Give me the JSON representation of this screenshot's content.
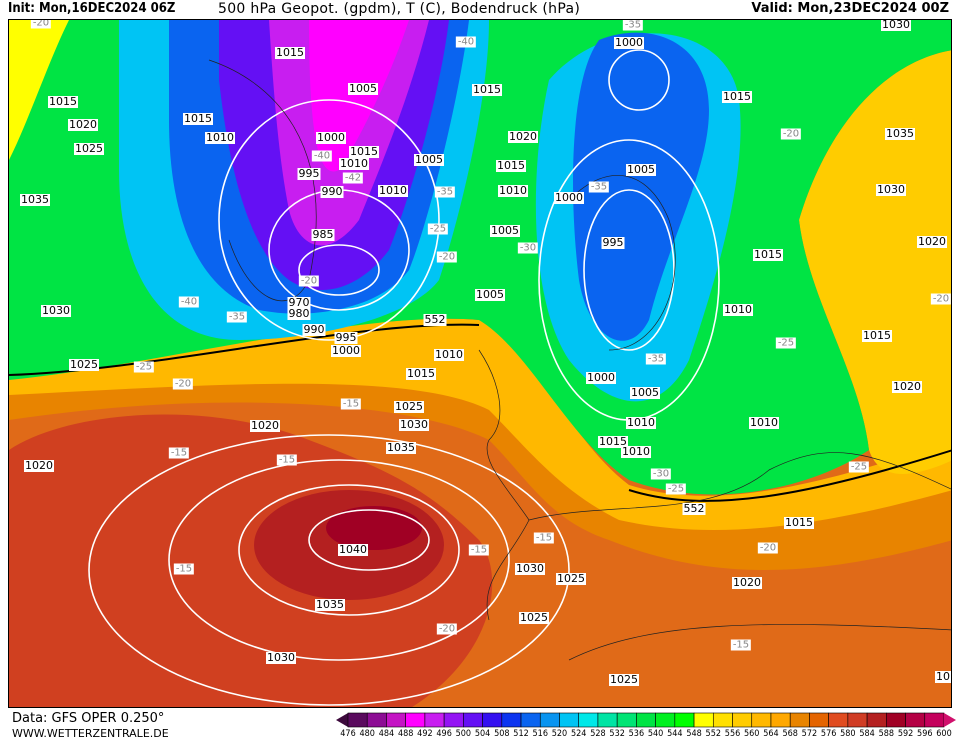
{
  "header": {
    "init": "Init: Mon,16DEC2024 06Z",
    "title": "500 hPa Geopot. (gpdm), T (C), Bodendruck (hPa)",
    "valid": "Valid: Mon,23DEC2024 00Z"
  },
  "footer": {
    "source": "Data: GFS OPER 0.250°",
    "url": "WWW.WETTERZENTRALE.DE"
  },
  "colorbar": {
    "ticks": [
      "476",
      "480",
      "484",
      "488",
      "492",
      "496",
      "500",
      "504",
      "508",
      "512",
      "516",
      "520",
      "524",
      "528",
      "532",
      "536",
      "540",
      "544",
      "548",
      "552",
      "556",
      "560",
      "564",
      "568",
      "572",
      "576",
      "580",
      "584",
      "588",
      "592",
      "596",
      "600"
    ],
    "colors": [
      "#5a0a5e",
      "#8c0c94",
      "#c414c4",
      "#ff00ff",
      "#c81ef0",
      "#9414f4",
      "#6410f4",
      "#3410f0",
      "#0c34f0",
      "#0a64f0",
      "#0894f0",
      "#00c4f4",
      "#00e8e8",
      "#00e4a4",
      "#00e474",
      "#00e444",
      "#00f020",
      "#00ff00",
      "#ffff00",
      "#ffe000",
      "#ffcc00",
      "#ffb800",
      "#ffa800",
      "#e88400",
      "#e46400",
      "#e04c20",
      "#d03c24",
      "#b42020",
      "#a00024",
      "#b40044",
      "#c4005c"
    ],
    "low_end_color": "#3c0a3c",
    "high_end_color": "#d0106c"
  },
  "pressure_labels": [
    "1015",
    "1005",
    "1015",
    "1020",
    "1025",
    "1015",
    "1010",
    "1000",
    "1015",
    "1010",
    "995",
    "990",
    "1010",
    "1005",
    "985",
    "970",
    "980",
    "990",
    "995",
    "1000",
    "1035",
    "1030",
    "1025",
    "1015",
    "1020",
    "1015",
    "1010",
    "1005",
    "1005",
    "1000",
    "995",
    "1000",
    "1005",
    "1015",
    "1030",
    "1035",
    "1030",
    "1020",
    "1015",
    "1010",
    "1015",
    "1020",
    "1010",
    "1010",
    "1015",
    "1025",
    "1030",
    "1035",
    "1020",
    "1020",
    "1040",
    "1035",
    "1030",
    "1030",
    "1025",
    "1025",
    "1025",
    "1020",
    "1015",
    "1000",
    "1005",
    "1010",
    "1015",
    "1010",
    "10"
  ],
  "temperature_labels": [
    "-20",
    "-40",
    "-35",
    "-40",
    "-42",
    "-35",
    "-25",
    "-20",
    "-30",
    "-35",
    "-20",
    "-40",
    "-35",
    "-25",
    "-20",
    "-15",
    "-15",
    "-15",
    "-15",
    "-15",
    "-15",
    "-20",
    "-15",
    "-20",
    "-25",
    "-30",
    "-35",
    "-25",
    "-25",
    "-20",
    "-20"
  ],
  "height_labels": [
    "552",
    "552"
  ]
}
